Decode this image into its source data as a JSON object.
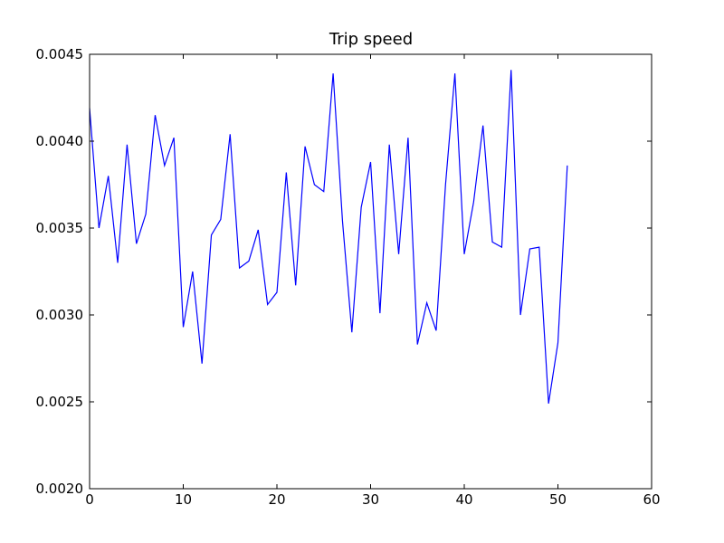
{
  "chart_data": {
    "type": "line",
    "title": "Trip speed",
    "xlabel": "",
    "ylabel": "",
    "xlim": [
      0,
      60
    ],
    "ylim": [
      0.002,
      0.0045
    ],
    "x_ticks": [
      0,
      10,
      20,
      30,
      40,
      50,
      60
    ],
    "y_ticks": [
      0.002,
      0.0025,
      0.003,
      0.0035,
      0.004,
      0.0045
    ],
    "x_tick_labels": [
      "0",
      "10",
      "20",
      "30",
      "40",
      "50",
      "60"
    ],
    "y_tick_labels": [
      "0.0020",
      "0.0025",
      "0.0030",
      "0.0035",
      "0.0040",
      "0.0045"
    ],
    "grid": false,
    "line_color": "#0000ff",
    "series": [
      {
        "x": [
          0,
          1,
          2,
          3,
          4,
          5,
          6,
          7,
          8,
          9,
          10,
          11,
          12,
          13,
          14,
          15,
          16,
          17,
          18,
          19,
          20,
          21,
          22,
          23,
          24,
          25,
          26,
          27,
          28,
          29,
          30,
          31,
          32,
          33,
          34,
          35,
          36,
          37,
          38,
          39,
          40,
          41,
          42,
          43,
          44,
          45,
          46,
          47,
          48,
          49,
          50,
          51
        ],
        "values": [
          0.00419,
          0.0035,
          0.0038,
          0.0033,
          0.00398,
          0.00341,
          0.00358,
          0.00415,
          0.00386,
          0.00402,
          0.00293,
          0.00325,
          0.00272,
          0.00346,
          0.00355,
          0.00404,
          0.00327,
          0.00331,
          0.00349,
          0.00306,
          0.00313,
          0.00382,
          0.00317,
          0.00397,
          0.00375,
          0.00371,
          0.00439,
          0.00354,
          0.0029,
          0.00362,
          0.00388,
          0.00301,
          0.00398,
          0.00335,
          0.00402,
          0.00283,
          0.00307,
          0.00291,
          0.00375,
          0.00439,
          0.00335,
          0.00365,
          0.00409,
          0.00342,
          0.00339,
          0.00441,
          0.003,
          0.00338,
          0.00339,
          0.00249,
          0.00284,
          0.00386
        ]
      }
    ]
  }
}
